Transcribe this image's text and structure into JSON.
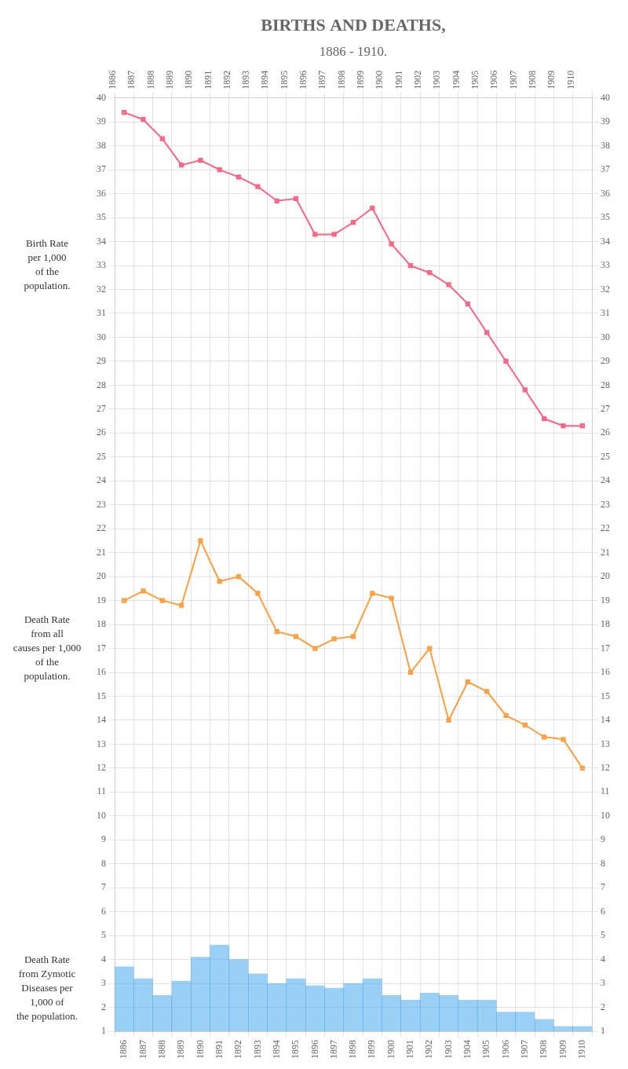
{
  "chart_data": {
    "type": "bar",
    "title": "BIRTHS AND DEATHS,",
    "subtitle": "1886 - 1910.",
    "x": [
      1886,
      1887,
      1888,
      1889,
      1890,
      1891,
      1892,
      1893,
      1894,
      1895,
      1896,
      1897,
      1898,
      1899,
      1900,
      1901,
      1902,
      1903,
      1904,
      1905,
      1906,
      1907,
      1908,
      1909,
      1910
    ],
    "series": [
      {
        "type": "bar",
        "values": [
          3.7,
          3.2,
          2.5,
          3.1,
          4.1,
          4.6,
          4.0,
          3.4,
          3.0,
          3.2,
          2.9,
          2.8,
          3.0,
          3.2,
          2.5,
          2.3,
          2.6,
          2.5,
          2.3,
          2.3,
          1.8,
          1.8,
          1.5,
          1.2,
          1.2
        ]
      },
      {
        "type": "line",
        "marker": "square",
        "values": [
          39.4,
          39.1,
          38.3,
          37.2,
          37.4,
          37.0,
          36.7,
          36.3,
          35.7,
          35.8,
          34.3,
          34.3,
          34.8,
          35.4,
          33.9,
          33.0,
          32.7,
          32.2,
          31.4,
          30.2,
          29.0,
          27.8,
          26.6,
          26.3,
          26.3
        ]
      },
      {
        "type": "line",
        "marker": "square",
        "values": [
          19.0,
          19.4,
          19.0,
          18.8,
          21.5,
          19.8,
          20.0,
          19.3,
          17.7,
          17.5,
          17.0,
          17.4,
          17.5,
          19.3,
          19.1,
          16.0,
          17.0,
          14.0,
          15.6,
          15.2,
          14.2,
          13.8,
          13.3,
          13.2,
          12.0
        ]
      }
    ],
    "xlim": [
      1885.5,
      1910.5
    ],
    "xticks": [
      1886,
      1887,
      1888,
      1889,
      1890,
      1891,
      1892,
      1893,
      1894,
      1895,
      1896,
      1897,
      1898,
      1899,
      1900,
      1901,
      1902,
      1903,
      1904,
      1905,
      1906,
      1907,
      1908,
      1909,
      1910
    ],
    "ylim": [
      1,
      40
    ],
    "yticks": [
      1,
      2,
      3,
      4,
      5,
      6,
      7,
      8,
      9,
      10,
      11,
      12,
      13,
      14,
      15,
      16,
      17,
      18,
      19,
      20,
      21,
      22,
      23,
      24,
      25,
      26,
      27,
      28,
      29,
      30,
      31,
      32,
      33,
      34,
      35,
      36,
      37,
      38,
      39,
      40
    ],
    "y2lim": [
      1,
      40
    ],
    "y2ticks": [
      1,
      2,
      3,
      4,
      5,
      6,
      7,
      8,
      9,
      10,
      11,
      12,
      13,
      14,
      15,
      16,
      17,
      18,
      19,
      20,
      21,
      22,
      23,
      24,
      25,
      26,
      27,
      28,
      29,
      30,
      31,
      32,
      33,
      34,
      35,
      36,
      37,
      38,
      39,
      40
    ],
    "grid": true,
    "annotations": [
      {
        "text": "Birth Rate\nper 1,000\nof the\npopulation.",
        "y": 33.0
      },
      {
        "text": "Death Rate\nfrom all\ncauses per 1,000\nof the\npopulation.",
        "y": 17.0
      },
      {
        "text": "Death Rate\nfrom Zymotic\nDiseases per\n1,000 of\nthe population.",
        "y": 2.8
      }
    ]
  }
}
